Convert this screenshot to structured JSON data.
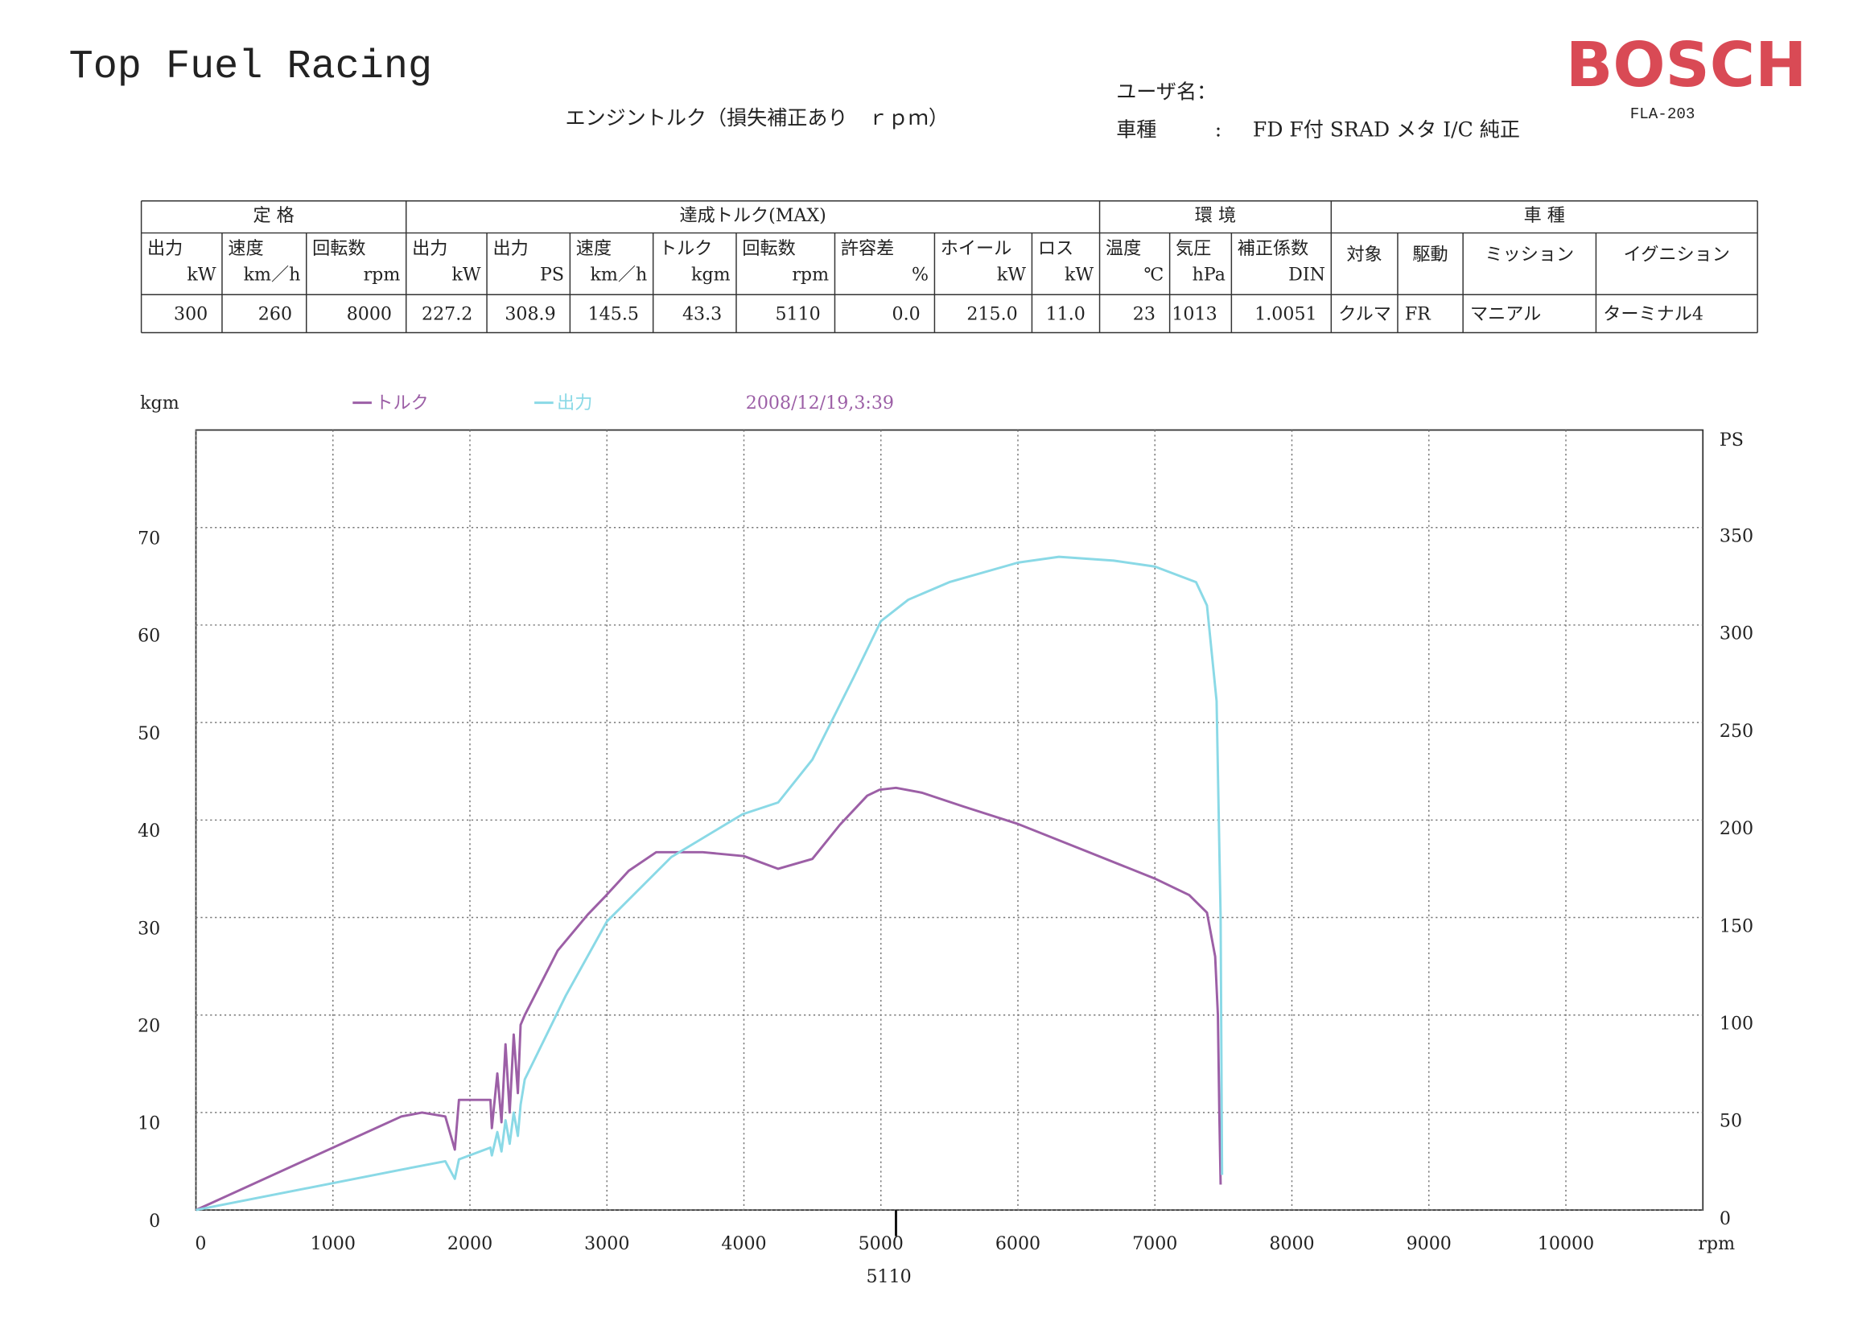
{
  "header": {
    "title": "Top Fuel Racing",
    "subtitle": "エンジントルク（損失補正あり　ｒｐｍ）",
    "user_label": "ユーザ名：",
    "vehicle_label": "車種",
    "vehicle_sep": ":",
    "vehicle": "FD F付 SRAD メタ I/C 純正",
    "logo": "BOSCH",
    "model": "FLA-203"
  },
  "table": {
    "groups": [
      "定 格",
      "達成トルク(MAX)",
      "環 境",
      "車 種"
    ],
    "columns": [
      [
        "出力",
        "kW"
      ],
      [
        "速度",
        "km／h"
      ],
      [
        "回転数",
        "rpm"
      ],
      [
        "出力",
        "kW"
      ],
      [
        "出力",
        "PS"
      ],
      [
        "速度",
        "km／h"
      ],
      [
        "トルク",
        "kgm"
      ],
      [
        "回転数",
        "rpm"
      ],
      [
        "許容差",
        "%"
      ],
      [
        "ホイール",
        "kW"
      ],
      [
        "ロス",
        "kW"
      ],
      [
        "温度",
        "℃"
      ],
      [
        "気圧",
        "hPa"
      ],
      [
        "補正係数",
        "DIN"
      ],
      [
        "対象"
      ],
      [
        "駆動"
      ],
      [
        "ミッション"
      ],
      [
        "イグニション"
      ]
    ],
    "rows": [
      [
        "300",
        "260",
        "8000",
        "227.2",
        "308.9",
        "145.5",
        "43.3",
        "5110",
        "0.0",
        "215.0",
        "11.0",
        "23",
        "1013",
        "1.0051",
        "クルマ",
        "FR",
        "マニアル",
        "ターミナル4"
      ]
    ]
  },
  "chart_data": {
    "type": "line",
    "date": "2008/12/19,3:39",
    "y_label": "kgm",
    "y2_label": "PS",
    "x_label": "rpm",
    "xlim": [
      0,
      11000
    ],
    "xticks": [
      0,
      1000,
      2000,
      3000,
      4000,
      5000,
      6000,
      7000,
      8000,
      9000,
      10000
    ],
    "ylim": [
      0,
      80
    ],
    "yticks": [
      0,
      10,
      20,
      30,
      40,
      50,
      60,
      70
    ],
    "y2lim": [
      0,
      400
    ],
    "y2ticks": [
      0,
      50,
      100,
      150,
      200,
      250,
      300,
      350
    ],
    "grid": true,
    "marker": 5110,
    "series": [
      {
        "name": "トルク",
        "color": "#9c5fa6",
        "x": [
          0,
          1500,
          1650,
          1820,
          1890,
          1920,
          2150,
          2160,
          2200,
          2230,
          2260,
          2290,
          2320,
          2350,
          2370,
          2400,
          2640,
          2860,
          2990,
          3160,
          3360,
          3700,
          4000,
          4250,
          4500,
          4700,
          4900,
          4990,
          5110,
          5300,
          5600,
          6000,
          6500,
          7000,
          7250,
          7380,
          7440,
          7460,
          7470,
          7480
        ],
        "values": [
          0,
          9.6,
          10,
          9.6,
          6.2,
          11.3,
          11.3,
          8.4,
          14,
          9,
          17,
          10,
          18,
          12,
          19,
          20,
          26.6,
          30.3,
          32.2,
          34.8,
          36.7,
          36.7,
          36.3,
          35,
          36,
          39.5,
          42.5,
          43.1,
          43.3,
          42.8,
          41.4,
          39.6,
          36.8,
          34,
          32.3,
          30.5,
          26,
          20,
          10,
          2.6
        ]
      },
      {
        "name": "出力",
        "color": "#8ad9e6",
        "x": [
          0,
          1500,
          1820,
          1890,
          1920,
          2150,
          2160,
          2200,
          2230,
          2260,
          2290,
          2320,
          2350,
          2370,
          2400,
          2700,
          3000,
          3470,
          3990,
          4250,
          4500,
          4800,
          5000,
          5200,
          5500,
          6000,
          6300,
          6700,
          7000,
          7300,
          7380,
          7450,
          7480,
          7490
        ],
        "values": [
          0,
          20.7,
          25,
          16,
          26,
          32,
          28,
          40,
          30,
          46,
          34,
          50,
          38,
          54,
          67,
          110,
          148,
          181,
          203,
          209,
          231,
          273,
          302,
          313,
          322,
          332,
          335,
          333,
          330,
          322,
          310,
          261,
          150,
          18
        ],
        "axis": "y2"
      }
    ]
  }
}
